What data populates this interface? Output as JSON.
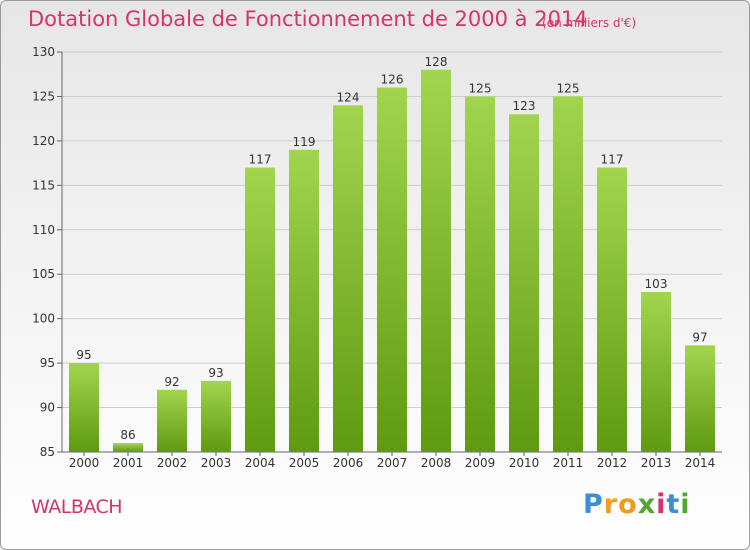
{
  "header": {
    "title": "Dotation Globale de Fonctionnement de 2000 à 2014",
    "unit": "(en milliers d'€)"
  },
  "footer": {
    "city": "WALBACH",
    "logo": {
      "letters": [
        "P",
        "r",
        "o",
        "x",
        "i",
        "t",
        "i"
      ]
    }
  },
  "colors": {
    "title": "#d6336c",
    "bar_top": "#a2d54e",
    "bar_bottom": "#5f9a10",
    "grid": "#cccccc"
  },
  "chart_data": {
    "type": "bar",
    "title": "Dotation Globale de Fonctionnement de 2000 à 2014",
    "subtitle": "(en milliers d'€)",
    "xlabel": "",
    "ylabel": "",
    "categories": [
      "2000",
      "2001",
      "2002",
      "2003",
      "2004",
      "2005",
      "2006",
      "2007",
      "2008",
      "2009",
      "2010",
      "2011",
      "2012",
      "2013",
      "2014"
    ],
    "values": [
      95,
      86,
      92,
      93,
      117,
      119,
      124,
      126,
      128,
      125,
      123,
      125,
      117,
      103,
      97
    ],
    "ylim": [
      85,
      130
    ],
    "yticks": [
      85,
      90,
      95,
      100,
      105,
      110,
      115,
      120,
      125,
      130
    ],
    "grid": true,
    "legend": "none"
  }
}
